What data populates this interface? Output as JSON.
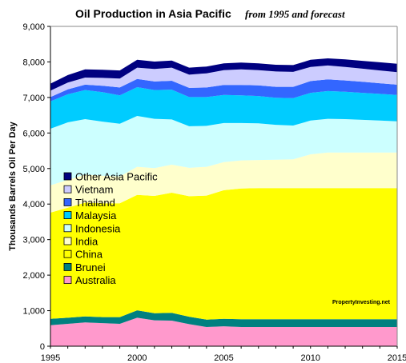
{
  "chart_data": {
    "type": "area",
    "stacked": true,
    "title": "Oil Production in Asia Pacific",
    "subtitle": "from 1995 and forecast",
    "ylabel": "Thousands Barrels Oil Per Day",
    "xlabel": "",
    "watermark": "PropertyInvesting.net",
    "xlim": [
      1995,
      2015
    ],
    "ylim": [
      0,
      9000
    ],
    "x_ticks": [
      "1995",
      "2000",
      "2005",
      "2010",
      "2015"
    ],
    "y_ticks": [
      "0",
      "1,000",
      "2,000",
      "3,000",
      "4,000",
      "5,000",
      "6,000",
      "7,000",
      "8,000",
      "9,000"
    ],
    "grid": false,
    "legend_position": "center-left",
    "x": [
      1995,
      1996,
      1997,
      1998,
      1999,
      2000,
      2001,
      2002,
      2003,
      2004,
      2005,
      2006,
      2007,
      2008,
      2009,
      2010,
      2011,
      2012,
      2013,
      2014,
      2015
    ],
    "series": [
      {
        "name": "Australia",
        "color": "#ff99cc",
        "values": [
          590,
          630,
          670,
          650,
          630,
          800,
          730,
          720,
          620,
          540,
          560,
          540,
          540,
          540,
          540,
          540,
          540,
          540,
          540,
          540,
          540
        ]
      },
      {
        "name": "Brunei",
        "color": "#008080",
        "values": [
          180,
          170,
          170,
          170,
          190,
          210,
          200,
          220,
          210,
          210,
          210,
          220,
          220,
          220,
          220,
          220,
          220,
          220,
          220,
          220,
          220
        ]
      },
      {
        "name": "China",
        "color": "#ffff00",
        "values": [
          2990,
          3100,
          3200,
          3200,
          3200,
          3250,
          3300,
          3380,
          3390,
          3490,
          3620,
          3680,
          3690,
          3690,
          3690,
          3690,
          3690,
          3690,
          3690,
          3690,
          3690
        ]
      },
      {
        "name": "India",
        "color": "#ffffcc",
        "values": [
          770,
          780,
          790,
          780,
          760,
          790,
          780,
          790,
          800,
          810,
          790,
          790,
          790,
          800,
          810,
          950,
          1000,
          1000,
          1000,
          1000,
          1000
        ]
      },
      {
        "name": "Indonesia",
        "color": "#ccffff",
        "values": [
          1590,
          1620,
          1560,
          1520,
          1480,
          1430,
          1390,
          1270,
          1170,
          1150,
          1100,
          1050,
          1030,
          980,
          950,
          950,
          950,
          940,
          920,
          900,
          880
        ]
      },
      {
        "name": "Malaysia",
        "color": "#00ccff",
        "values": [
          770,
          790,
          820,
          830,
          800,
          810,
          810,
          840,
          820,
          810,
          790,
          780,
          770,
          760,
          770,
          780,
          780,
          770,
          760,
          750,
          740
        ]
      },
      {
        "name": "Thailand",
        "color": "#3366ff",
        "values": [
          120,
          140,
          150,
          180,
          220,
          230,
          240,
          250,
          260,
          270,
          280,
          290,
          300,
          310,
          320,
          330,
          330,
          320,
          310,
          300,
          290
        ]
      },
      {
        "name": "Vietnam",
        "color": "#ccccff",
        "values": [
          180,
          190,
          200,
          220,
          250,
          320,
          350,
          370,
          370,
          400,
          420,
          440,
          430,
          430,
          420,
          400,
          390,
          380,
          370,
          360,
          350
        ]
      },
      {
        "name": "Other Asia Pacific",
        "color": "#000080",
        "values": [
          200,
          210,
          230,
          230,
          230,
          220,
          210,
          200,
          200,
          190,
          190,
          190,
          190,
          190,
          190,
          200,
          200,
          210,
          220,
          230,
          240
        ]
      }
    ],
    "legend_order": [
      "Other Asia Pacific",
      "Vietnam",
      "Thailand",
      "Malaysia",
      "Indonesia",
      "India",
      "China",
      "Brunei",
      "Australia"
    ]
  }
}
